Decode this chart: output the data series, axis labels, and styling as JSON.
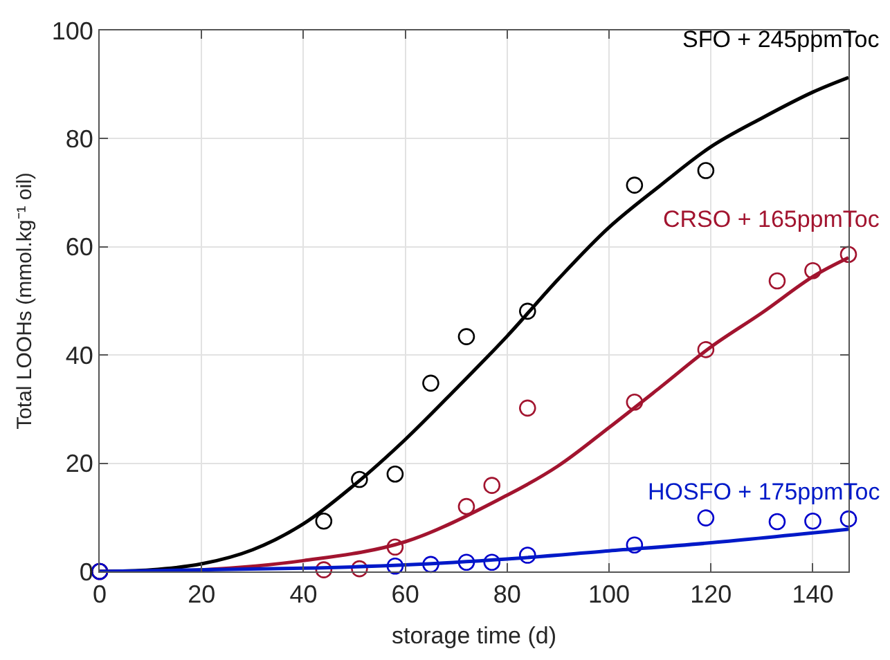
{
  "chart_data": {
    "type": "scatter",
    "xlabel": "storage time (d)",
    "ylabel": "Total LOOHs (mmol.kg⁻¹ oil)",
    "xlim": [
      0,
      147
    ],
    "xticks": [
      0,
      20,
      40,
      60,
      80,
      100,
      120,
      140
    ],
    "ylim": [
      0,
      100
    ],
    "yticks": [
      0,
      20,
      40,
      60,
      80,
      100
    ],
    "grid": true,
    "marker": "circle",
    "legend": false,
    "series": [
      {
        "color": "#000000",
        "x": [
          0,
          44,
          51,
          58,
          65,
          72,
          84,
          105,
          119
        ],
        "values": [
          0,
          9.3,
          17,
          18,
          34.8,
          43.4,
          48.1,
          71.4,
          74.1
        ]
      },
      {
        "color": "#a2142f",
        "x": [
          0,
          44,
          51,
          58,
          72,
          77,
          84,
          105,
          119,
          133,
          140,
          147
        ],
        "values": [
          0,
          0.3,
          0.5,
          4.5,
          12,
          15.9,
          30.2,
          31.3,
          41,
          53.7,
          55.6,
          58.6
        ]
      },
      {
        "color": "#0000cc",
        "x": [
          0,
          58,
          65,
          72,
          77,
          84,
          105,
          119,
          133,
          140,
          147
        ],
        "values": [
          0,
          1,
          1.3,
          1.7,
          1.7,
          3,
          4.9,
          9.9,
          9.2,
          9.3,
          9.7
        ]
      },
      {
        "type": "line",
        "name": "SFO + 245ppmToc",
        "marker": "none",
        "color": "#000000",
        "x": [
          0,
          10,
          20,
          30,
          40,
          50,
          60,
          70,
          80,
          90,
          100,
          110,
          120,
          130,
          140,
          147
        ],
        "values": [
          0,
          0.3,
          1.4,
          4,
          8.8,
          16,
          24.4,
          33.8,
          43.5,
          54,
          63.6,
          71.3,
          78.5,
          83.8,
          88.6,
          91.3
        ]
      },
      {
        "type": "line",
        "name": "CRSO + 165ppmToc",
        "marker": "none",
        "color": "#a2142f",
        "x": [
          0,
          20,
          40,
          60,
          80,
          90,
          100,
          110,
          120,
          130,
          140,
          147
        ],
        "values": [
          0,
          0.3,
          2,
          5.5,
          14.1,
          19.5,
          26.6,
          34,
          41.5,
          47.8,
          54.5,
          58
        ]
      },
      {
        "type": "line",
        "name": "HOSFO + 175ppmToc",
        "marker": "none",
        "color": "#0019c8",
        "x": [
          0,
          40,
          60,
          80,
          100,
          120,
          147
        ],
        "values": [
          0,
          0.6,
          1.2,
          2.3,
          3.8,
          5.3,
          7.8
        ]
      }
    ]
  }
}
